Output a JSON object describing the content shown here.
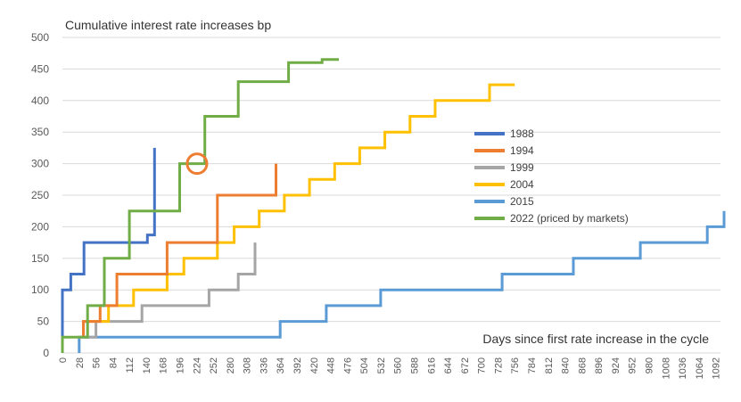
{
  "chart_data": {
    "type": "line",
    "title": "Cumulative interest rate increases bp",
    "xlabel": "Days since first rate increase in the cycle",
    "ylabel": "",
    "ylim": [
      0,
      500
    ],
    "yticks": [
      0,
      50,
      100,
      150,
      200,
      250,
      300,
      350,
      400,
      450,
      500
    ],
    "xlim": [
      0,
      1100
    ],
    "xticks": [
      0,
      28,
      56,
      84,
      112,
      140,
      168,
      196,
      224,
      252,
      280,
      308,
      336,
      364,
      392,
      420,
      448,
      476,
      504,
      532,
      560,
      588,
      616,
      644,
      672,
      700,
      728,
      756,
      784,
      812,
      840,
      868,
      896,
      924,
      952,
      980,
      1008,
      1036,
      1064,
      1092
    ],
    "grid": true,
    "legend_position": "center-right",
    "annotation": {
      "type": "circle",
      "x": 225,
      "y": 300,
      "color": "#ED7D31"
    },
    "series": [
      {
        "name": "1988",
        "color": "#4472C4",
        "x": [
          0,
          0,
          4,
          4,
          14,
          14,
          36,
          36,
          126,
          126,
          142,
          142,
          154,
          154
        ],
        "y": [
          25,
          100,
          100,
          100,
          100,
          125,
          125,
          175,
          175,
          175,
          175,
          187,
          187,
          325
        ]
      },
      {
        "name": "1994",
        "color": "#ED7D31",
        "x": [
          35,
          35,
          63,
          63,
          91,
          91,
          175,
          175,
          259,
          259,
          357,
          357
        ],
        "y": [
          25,
          50,
          50,
          75,
          75,
          125,
          125,
          175,
          175,
          250,
          250,
          300
        ]
      },
      {
        "name": "1999",
        "color": "#A5A5A5",
        "x": [
          28,
          28,
          56,
          56,
          133,
          133,
          196,
          196,
          245,
          245,
          294,
          294,
          322,
          322
        ],
        "y": [
          25,
          25,
          25,
          50,
          50,
          75,
          75,
          75,
          75,
          100,
          100,
          125,
          125,
          175
        ]
      },
      {
        "name": "2004",
        "color": "#FFC000",
        "x": [
          35,
          35,
          49,
          49,
          77,
          77,
          119,
          119,
          147,
          147,
          175,
          175,
          203,
          203,
          231,
          231,
          259,
          259,
          287,
          287,
          329,
          329,
          371,
          371,
          413,
          413,
          455,
          455,
          497,
          497,
          539,
          539,
          581,
          581,
          623,
          623,
          665,
          665,
          714,
          714,
          756,
          756
        ],
        "y": [
          25,
          50,
          50,
          50,
          50,
          75,
          75,
          100,
          100,
          100,
          100,
          125,
          125,
          150,
          150,
          150,
          150,
          175,
          175,
          200,
          200,
          225,
          225,
          250,
          250,
          275,
          275,
          300,
          300,
          325,
          325,
          350,
          350,
          375,
          375,
          400,
          400,
          400,
          400,
          425,
          425,
          425
        ]
      },
      {
        "name": "2015",
        "color": "#5B9BD5",
        "x": [
          28,
          28,
          364,
          364,
          441,
          441,
          532,
          532,
          735,
          735,
          854,
          854,
          966,
          966,
          1078,
          1078,
          1106,
          1106
        ],
        "y": [
          0,
          25,
          25,
          50,
          50,
          75,
          75,
          100,
          100,
          125,
          125,
          150,
          150,
          175,
          175,
          200,
          200,
          225
        ]
      },
      {
        "name": "2022 (priced by markets)",
        "color": "#70AD47",
        "x": [
          0,
          0,
          42,
          42,
          70,
          70,
          112,
          112,
          154,
          154,
          196,
          196,
          238,
          238,
          294,
          294,
          378,
          378,
          434,
          434,
          462
        ],
        "y": [
          0,
          25,
          25,
          75,
          75,
          150,
          150,
          225,
          225,
          225,
          225,
          300,
          300,
          375,
          375,
          430,
          430,
          460,
          460,
          465,
          465
        ]
      }
    ]
  }
}
